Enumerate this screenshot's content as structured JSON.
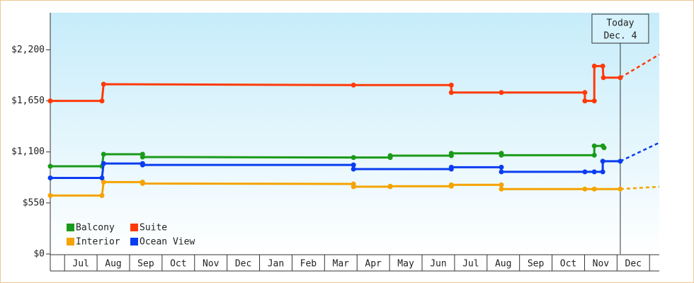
{
  "chart_data": {
    "type": "step-line",
    "xlim": [
      0.56,
      19.3
    ],
    "xticks": [
      {
        "value": 1.5,
        "label": "Jul"
      },
      {
        "value": 2.5,
        "label": "Aug"
      },
      {
        "value": 3.5,
        "label": "Sep"
      },
      {
        "value": 4.5,
        "label": "Oct"
      },
      {
        "value": 5.5,
        "label": "Nov"
      },
      {
        "value": 6.5,
        "label": "Dec"
      },
      {
        "value": 7.5,
        "label": "Jan"
      },
      {
        "value": 8.5,
        "label": "Feb"
      },
      {
        "value": 9.5,
        "label": "Mar"
      },
      {
        "value": 10.5,
        "label": "Apr"
      },
      {
        "value": 11.5,
        "label": "May"
      },
      {
        "value": 12.5,
        "label": "Jun"
      },
      {
        "value": 13.5,
        "label": "Jul"
      },
      {
        "value": 14.5,
        "label": "Aug"
      },
      {
        "value": 15.5,
        "label": "Sep"
      },
      {
        "value": 16.5,
        "label": "Oct"
      },
      {
        "value": 17.5,
        "label": "Nov"
      },
      {
        "value": 18.5,
        "label": "Dec"
      }
    ],
    "ylim": [
      0,
      2600
    ],
    "yticks": [
      {
        "value": 0,
        "label": "$0"
      },
      {
        "value": 550,
        "label": "$550"
      },
      {
        "value": 1100,
        "label": "$1,100"
      },
      {
        "value": 1650,
        "label": "$1,650"
      },
      {
        "value": 2200,
        "label": "$2,200"
      }
    ],
    "annotation": {
      "text": [
        "Today",
        "Dec. 4"
      ],
      "x": 18.1
    },
    "legend": "bottom-left",
    "series": [
      {
        "name": "Balcony",
        "color": "#1a9a1a",
        "x": [
          0.56,
          2.15,
          2.2,
          3.4,
          3.4,
          9.89,
          11.02,
          11.02,
          12.9,
          12.9,
          14.44,
          14.44,
          17.3,
          17.3,
          17.56,
          17.6
        ],
        "values": [
          945,
          945,
          1075,
          1075,
          1045,
          1040,
          1040,
          1060,
          1060,
          1085,
          1085,
          1065,
          1065,
          1165,
          1165,
          1145
        ]
      },
      {
        "name": "Suite",
        "color": "#ff3a0a",
        "x": [
          0.56,
          2.15,
          2.2,
          9.89,
          12.9,
          12.9,
          14.44,
          17.01,
          17.01,
          17.3,
          17.3,
          17.56,
          17.58,
          18.1
        ],
        "values": [
          1650,
          1650,
          1830,
          1820,
          1820,
          1740,
          1740,
          1740,
          1650,
          1650,
          2025,
          2025,
          1900,
          1900
        ],
        "forecast": {
          "x": [
            18.1,
            19.3
          ],
          "values": [
            1900,
            2150
          ]
        }
      },
      {
        "name": "Interior",
        "color": "#f5a300",
        "x": [
          0.56,
          2.15,
          2.2,
          3.4,
          3.4,
          9.89,
          9.89,
          11.02,
          11.02,
          12.9,
          12.9,
          14.44,
          14.44,
          17.01,
          17.3,
          18.1
        ],
        "values": [
          630,
          630,
          775,
          775,
          760,
          755,
          725,
          725,
          730,
          730,
          745,
          745,
          700,
          700,
          700,
          700
        ],
        "forecast": {
          "x": [
            18.1,
            19.3
          ],
          "values": [
            700,
            725
          ]
        }
      },
      {
        "name": "Ocean View",
        "color": "#0a3cf0",
        "x": [
          0.56,
          2.15,
          2.2,
          3.4,
          3.4,
          9.89,
          9.89,
          12.9,
          12.9,
          14.44,
          14.44,
          17.01,
          17.3,
          17.56,
          17.56,
          18.1
        ],
        "values": [
          820,
          820,
          975,
          975,
          960,
          960,
          915,
          915,
          935,
          935,
          885,
          885,
          885,
          885,
          1000,
          1000
        ],
        "forecast": {
          "x": [
            18.1,
            19.3
          ],
          "values": [
            1000,
            1200
          ]
        }
      }
    ]
  }
}
